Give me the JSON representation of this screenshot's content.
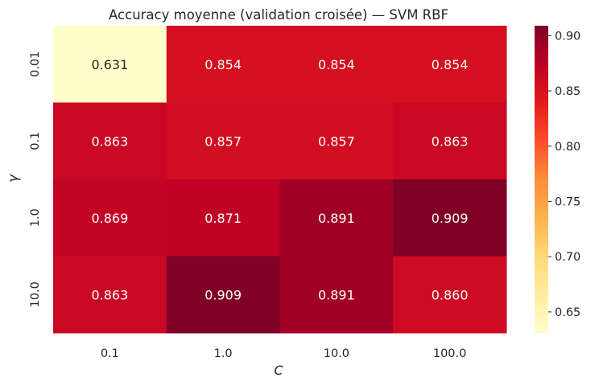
{
  "chart_data": {
    "type": "heatmap",
    "title": "Accuracy moyenne (validation croisée) — SVM RBF",
    "xlabel": "C",
    "ylabel": "γ",
    "x_categories": [
      "0.1",
      "1.0",
      "10.0",
      "100.0"
    ],
    "y_categories": [
      "0.01",
      "0.1",
      "1.0",
      "10.0"
    ],
    "values": [
      [
        0.631,
        0.854,
        0.854,
        0.854
      ],
      [
        0.863,
        0.857,
        0.857,
        0.863
      ],
      [
        0.869,
        0.871,
        0.891,
        0.909
      ],
      [
        0.863,
        0.909,
        0.891,
        0.86
      ]
    ],
    "value_format": "0.000",
    "colormap": "YlOrRd",
    "vmin": 0.631,
    "vmax": 0.909,
    "colorbar_ticks": [
      0.65,
      0.7,
      0.75,
      0.8,
      0.85,
      0.9
    ],
    "colorbar_tick_labels": [
      "0.65",
      "0.70",
      "0.75",
      "0.80",
      "0.85",
      "0.90"
    ],
    "text_color_light": "#ffffff",
    "text_color_dark": "#262626"
  }
}
